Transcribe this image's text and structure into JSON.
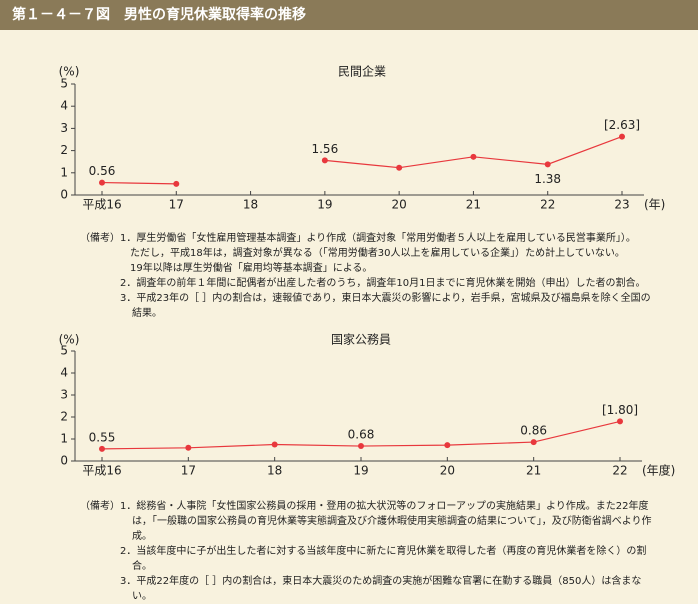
{
  "header": {
    "title": "第１－４－７図　男性の育児休業取得率の推移"
  },
  "chart_data": [
    {
      "type": "line",
      "title": "民間企業",
      "y_label": "(%)",
      "x_label": "(年)",
      "categories": [
        "平成16",
        "17",
        "18",
        "19",
        "20",
        "21",
        "22",
        "23"
      ],
      "series": [
        {
          "name": "民間企業",
          "color": "#e8383d",
          "values": [
            0.56,
            0.5,
            null,
            1.56,
            1.23,
            1.72,
            1.38,
            2.63
          ],
          "value_labels": [
            "0.56",
            null,
            null,
            "1.56",
            null,
            null,
            "1.38",
            "[2.63]"
          ]
        }
      ],
      "ylim": [
        0,
        5
      ],
      "yticks": [
        0,
        1,
        2,
        3,
        4,
        5
      ],
      "notes_label": "（備考）",
      "notes": [
        "1．厚生労働省「女性雇用管理基本調査」より作成（調査対象「常用労働者５人以上を雇用している民営事業所」）。",
        "　ただし，平成18年は，調査対象が異なる（「常用労働者30人以上を雇用している企業」）ため計上していない。",
        "　19年以降は厚生労働省「雇用均等基本調査」による。",
        "2．調査年の前年１年間に配偶者が出産した者のうち，調査年10月1日までに育児休業を開始（申出）した者の割合。",
        "3．平成23年の［ ］内の割合は，速報値であり，東日本大震災の影響により，岩手県，宮城県及び福島県を除く全国の結果。"
      ]
    },
    {
      "type": "line",
      "title": "国家公務員",
      "y_label": "(%)",
      "x_label": "(年度)",
      "categories": [
        "平成16",
        "17",
        "18",
        "19",
        "20",
        "21",
        "22"
      ],
      "series": [
        {
          "name": "国家公務員",
          "color": "#e8383d",
          "values": [
            0.55,
            0.6,
            0.75,
            0.68,
            0.72,
            0.86,
            1.8
          ],
          "value_labels": [
            "0.55",
            null,
            null,
            "0.68",
            null,
            "0.86",
            "[1.80]"
          ]
        }
      ],
      "ylim": [
        0,
        5
      ],
      "yticks": [
        0,
        1,
        2,
        3,
        4,
        5
      ],
      "notes_label": "（備考）",
      "notes": [
        "1．総務省・人事院「女性国家公務員の採用・登用の拡大状況等のフォローアップの実施結果」より作成。また22年度は，「一般職の国家公務員の育児休業等実態調査及び介護休暇使用実態調査の結果について」，及び防衛省調べより作成。",
        "2．当該年度中に子が出生した者に対する当該年度中に新たに育児休業を取得した者（再度の育児休業者を除く）の割合。",
        "3．平成22年度の［ ］内の割合は，東日本大震災のため調査の実施が困難な官署に在勤する職員（850人）は含まない。"
      ]
    }
  ]
}
